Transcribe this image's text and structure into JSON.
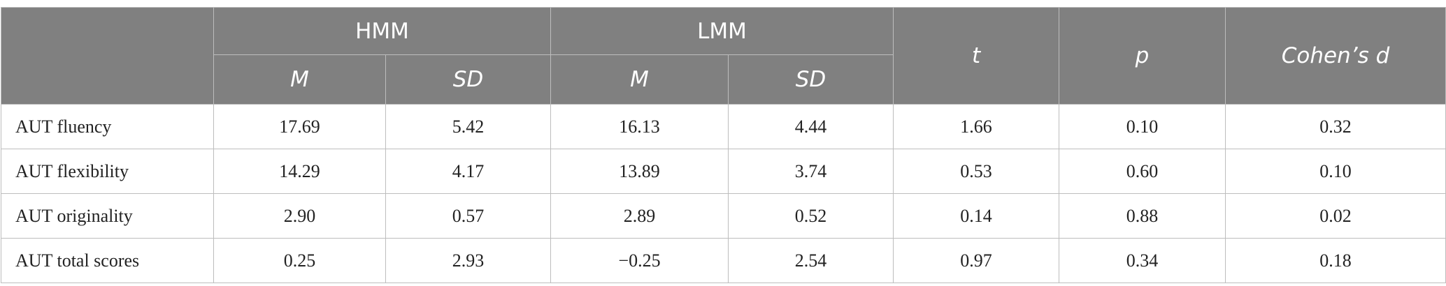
{
  "table": {
    "header": {
      "groups": [
        "HMM",
        "LMM"
      ],
      "sub": [
        "M",
        "SD",
        "M",
        "SD"
      ],
      "stats": [
        "t",
        "p",
        "Cohen’s d"
      ]
    },
    "rows": [
      [
        "AUT fluency",
        "17.69",
        "5.42",
        "16.13",
        "4.44",
        "1.66",
        "0.10",
        "0.32"
      ],
      [
        "AUT flexibility",
        "14.29",
        "4.17",
        "13.89",
        "3.74",
        "0.53",
        "0.60",
        "0.10"
      ],
      [
        "AUT originality",
        "2.90",
        "0.57",
        "2.89",
        "0.52",
        "0.14",
        "0.88",
        "0.02"
      ],
      [
        "AUT total scores",
        "0.25",
        "2.93",
        "−0.25",
        "2.54",
        "0.97",
        "0.34",
        "0.18"
      ]
    ]
  }
}
